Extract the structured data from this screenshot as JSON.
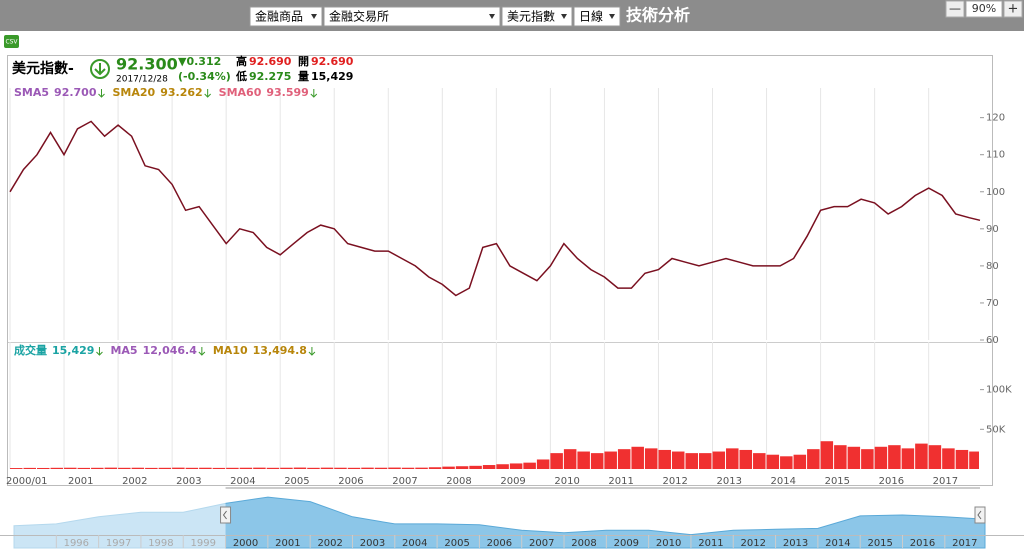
{
  "toolbar": {
    "selects": [
      "金融商品",
      "金融交易所",
      "美元指數",
      "日線"
    ],
    "title": "技術分析",
    "zoom_minus": "—",
    "zoom": "90%",
    "zoom_plus": "+"
  },
  "csv": "CSV",
  "quote": {
    "name": "美元指數-",
    "price": "92.300",
    "date": "2017/12/28",
    "change": "▼0.312",
    "change_pct": "(-0.34%)",
    "high_label": "高",
    "high": "92.690",
    "open_label": "開",
    "open": "92.690",
    "low_label": "低",
    "low": "92.275",
    "volume_label": "量",
    "volume": "15,429"
  },
  "chart_data": [
    {
      "type": "line",
      "color": "#7a1020",
      "grid": "x",
      "indicators": [
        {
          "name": "SMA5",
          "value": "92.700",
          "color": "#9b59b6"
        },
        {
          "name": "SMA20",
          "value": "93.262",
          "color": "#b8860b"
        },
        {
          "name": "SMA60",
          "value": "93.599",
          "color": "#e0607a"
        }
      ],
      "x": [
        2000,
        2000.25,
        2000.5,
        2000.75,
        2001,
        2001.25,
        2001.5,
        2001.75,
        2002,
        2002.25,
        2002.5,
        2002.75,
        2003,
        2003.25,
        2003.5,
        2003.75,
        2004,
        2004.25,
        2004.5,
        2004.75,
        2005,
        2005.25,
        2005.5,
        2005.75,
        2006,
        2006.25,
        2006.5,
        2006.75,
        2007,
        2007.25,
        2007.5,
        2007.75,
        2008,
        2008.25,
        2008.5,
        2008.75,
        2009,
        2009.25,
        2009.5,
        2009.75,
        2010,
        2010.25,
        2010.5,
        2010.75,
        2011,
        2011.25,
        2011.5,
        2011.75,
        2012,
        2012.25,
        2012.5,
        2012.75,
        2013,
        2013.25,
        2013.5,
        2013.75,
        2014,
        2014.25,
        2014.5,
        2014.75,
        2015,
        2015.25,
        2015.5,
        2015.75,
        2016,
        2016.25,
        2016.5,
        2016.75,
        2017,
        2017.25,
        2017.5,
        2017.75,
        2017.95
      ],
      "values": [
        100,
        106,
        110,
        116,
        110,
        117,
        119,
        115,
        118,
        115,
        107,
        106,
        102,
        95,
        96,
        91,
        86,
        90,
        89,
        85,
        83,
        86,
        89,
        91,
        90,
        86,
        85,
        84,
        84,
        82,
        80,
        77,
        75,
        72,
        74,
        85,
        86,
        80,
        78,
        76,
        80,
        86,
        82,
        79,
        77,
        74,
        74,
        78,
        79,
        82,
        81,
        80,
        81,
        82,
        81,
        80,
        80,
        80,
        82,
        88,
        95,
        96,
        96,
        98,
        97,
        94,
        96,
        99,
        101,
        99,
        94,
        93,
        92.3
      ],
      "xlim": [
        2000,
        2017.95
      ],
      "xticks": [
        {
          "value": 2000,
          "label": "2000/01"
        },
        2001,
        2002,
        2003,
        2004,
        2005,
        2006,
        2007,
        2008,
        2009,
        2010,
        2011,
        2012,
        2013,
        2014,
        2015,
        2016,
        2017
      ],
      "ylim": [
        60,
        128
      ],
      "yticks": [
        60,
        70,
        80,
        90,
        100,
        110,
        120
      ]
    },
    {
      "type": "bar",
      "color": "#f03030",
      "grid": "x",
      "indicators": [
        {
          "name": "成交量",
          "value": "15,429",
          "color": "#1aa3a3"
        },
        {
          "name": "MA5",
          "value": "12,046.4",
          "color": "#9b59b6"
        },
        {
          "name": "MA10",
          "value": "13,494.8",
          "color": "#b8860b"
        }
      ],
      "x": [
        2000,
        2000.25,
        2000.5,
        2000.75,
        2001,
        2001.25,
        2001.5,
        2001.75,
        2002,
        2002.25,
        2002.5,
        2002.75,
        2003,
        2003.25,
        2003.5,
        2003.75,
        2004,
        2004.25,
        2004.5,
        2004.75,
        2005,
        2005.25,
        2005.5,
        2005.75,
        2006,
        2006.25,
        2006.5,
        2006.75,
        2007,
        2007.25,
        2007.5,
        2007.75,
        2008,
        2008.25,
        2008.5,
        2008.75,
        2009,
        2009.25,
        2009.5,
        2009.75,
        2010,
        2010.25,
        2010.5,
        2010.75,
        2011,
        2011.25,
        2011.5,
        2011.75,
        2012,
        2012.25,
        2012.5,
        2012.75,
        2013,
        2013.25,
        2013.5,
        2013.75,
        2014,
        2014.25,
        2014.5,
        2014.75,
        2015,
        2015.25,
        2015.5,
        2015.75,
        2016,
        2016.25,
        2016.5,
        2016.75,
        2017,
        2017.25,
        2017.5,
        2017.75
      ],
      "values": [
        1200,
        1400,
        1300,
        1500,
        1600,
        1400,
        1500,
        1700,
        1500,
        1600,
        1400,
        1500,
        1700,
        1500,
        1600,
        1400,
        1500,
        1600,
        1700,
        1500,
        1600,
        1800,
        1500,
        1700,
        1600,
        1500,
        1700,
        1600,
        1800,
        1600,
        1700,
        2200,
        3000,
        3500,
        4000,
        5000,
        6000,
        7000,
        8000,
        12000,
        20000,
        25000,
        22000,
        20000,
        22000,
        25000,
        28000,
        26000,
        24000,
        22000,
        20000,
        20000,
        22000,
        26000,
        24000,
        20000,
        18000,
        16000,
        18000,
        25000,
        35000,
        30000,
        28000,
        25000,
        28000,
        30000,
        26000,
        32000,
        30000,
        26000,
        24000,
        22000
      ],
      "xlim": [
        2000,
        2017.95
      ],
      "ylim": [
        0,
        160000
      ],
      "yticks": [
        {
          "value": 50000,
          "label": "50K"
        },
        {
          "value": 100000,
          "label": "100K"
        }
      ]
    },
    {
      "type": "area",
      "color": "#8cc6e8",
      "x": [
        1995,
        1996,
        1997,
        1998,
        1999,
        2000,
        2001,
        2002,
        2003,
        2004,
        2005,
        2006,
        2007,
        2008,
        2009,
        2010,
        2011,
        2012,
        2013,
        2014,
        2015,
        2016,
        2017,
        2017.95
      ],
      "values": [
        85,
        87,
        95,
        100,
        100,
        110,
        117,
        112,
        95,
        87,
        87,
        86,
        80,
        77,
        80,
        80,
        75,
        80,
        81,
        82,
        96,
        97,
        95,
        92.3
      ],
      "xlim": [
        1995,
        2017.95
      ],
      "ylim": [
        60,
        125
      ],
      "xticks": [
        1996,
        1997,
        1998,
        1999,
        2000,
        2001,
        2002,
        2003,
        2004,
        2005,
        2006,
        2007,
        2008,
        2009,
        2010,
        2011,
        2012,
        2013,
        2014,
        2015,
        2016,
        2017
      ]
    }
  ]
}
